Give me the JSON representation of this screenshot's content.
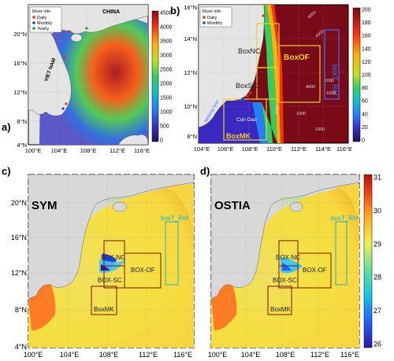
{
  "panel_a": {
    "letter": "a)",
    "country_labels": [
      "CHINA",
      "VIET NAM"
    ],
    "legend": {
      "title": "River info",
      "items": [
        {
          "label": "Daily",
          "color": "#e03020",
          "marker": "circle"
        },
        {
          "label": "Monthly",
          "color": "#2040d0",
          "marker": "circle"
        },
        {
          "label": "Yearly",
          "color": "#20a020",
          "marker": "circle"
        }
      ]
    },
    "lat_ticks": [
      "20°N",
      "16°N",
      "12°N",
      "8°N",
      "4°N"
    ],
    "lon_ticks": [
      "100°E",
      "104°E",
      "108°E",
      "112°E",
      "116°E"
    ],
    "colorbar_ticks": [
      "4500",
      "4000",
      "3500",
      "3000",
      "2500",
      "2000",
      "1500",
      "1000",
      "500",
      "0"
    ]
  },
  "panel_b": {
    "letter": "b)",
    "legend": {
      "title": "River info",
      "items": [
        {
          "label": "Daily",
          "color": "#e03020",
          "marker": "circle"
        },
        {
          "label": "Monthly",
          "color": "#2040d0",
          "marker": "circle"
        }
      ]
    },
    "box_labels": [
      "BoxNC",
      "BoxSC",
      "BoxOF",
      "BoxMK",
      "boxT_Ref"
    ],
    "place_labels": [
      "Con Dao",
      "Mekong river"
    ],
    "contour_labels": [
      "1000",
      "4000",
      "4000",
      "4000",
      "1000",
      "1000",
      "1000",
      "1000"
    ],
    "lat_ticks": [
      "16°N",
      "14°N",
      "12°N",
      "10°N",
      "8°N"
    ],
    "lon_ticks": [
      "104°E",
      "106°E",
      "108°E",
      "110°E",
      "112°E",
      "114°E",
      "116°E"
    ],
    "colorbar_ticks": [
      "200",
      "180",
      "160",
      "140",
      "120",
      "100",
      "80",
      "60",
      "40",
      "20",
      "0"
    ]
  },
  "panel_c": {
    "letter": "c)",
    "title": "SYM",
    "box_labels": [
      "BOX-NC",
      "BOX-SC",
      "BOX-OF",
      "BoxMK",
      "boxT_Ref"
    ],
    "lat_ticks": [
      "20°N",
      "16°N",
      "12°N",
      "8°N",
      "4°N"
    ],
    "lon_ticks": [
      "100°E",
      "104°E",
      "108°E",
      "112°E",
      "116°E"
    ]
  },
  "panel_d": {
    "letter": "d)",
    "title": "OSTIA",
    "box_labels": [
      "BOX-NC",
      "BOX-SC",
      "BOX-OF",
      "BoxMK",
      "boxT_Ref"
    ],
    "lon_ticks": [
      "100°E",
      "104°E",
      "108°E",
      "112°E",
      "116°E"
    ],
    "colorbar_ticks": [
      "31",
      "30",
      "29",
      "28",
      "27",
      "26"
    ]
  }
}
